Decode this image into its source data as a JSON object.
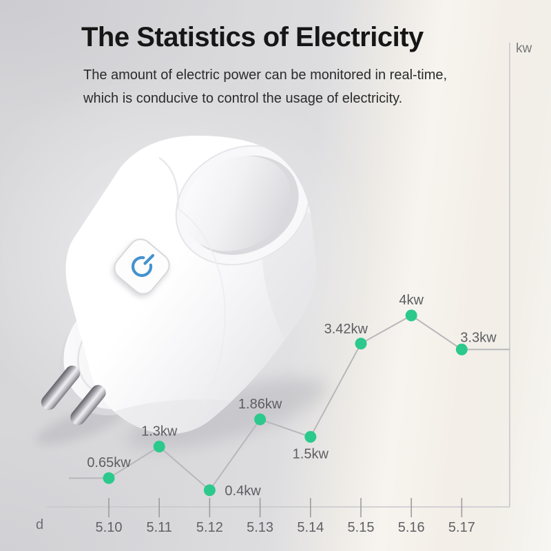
{
  "header": {
    "title": "The Statistics of Electricity",
    "subtitle_line1": "The amount of electric power can be monitored in real-time,",
    "subtitle_line2": "which is conducive to control the usage of electricity."
  },
  "device": {
    "name": "white smart plug with power button",
    "power_icon_color": "#4492cd",
    "pin_count": 2
  },
  "chart_data": {
    "type": "line",
    "x": [
      "5.10",
      "5.11",
      "5.12",
      "5.13",
      "5.14",
      "5.15",
      "5.16",
      "5.17"
    ],
    "values": [
      0.65,
      1.3,
      0.4,
      1.86,
      1.5,
      3.42,
      4,
      3.3
    ],
    "point_labels": [
      "0.65kw",
      "1.3kw",
      "0.4kw",
      "1.86kw",
      "1.5kw",
      "3.42kw",
      "4kw",
      "3.3kw"
    ],
    "label_positions": [
      "above",
      "above",
      "right",
      "above",
      "below",
      "above-left",
      "above",
      "above-right"
    ],
    "xlabel": "d",
    "ylabel": "kw",
    "ylim": [
      0,
      4.4
    ],
    "grid": false,
    "legend": "none",
    "line_color": "#b7b7bb",
    "point_color": "#2cc98c",
    "axis_color": "#c7c7cb",
    "tick_color": "#9b9ba0",
    "label_color": "#5d5d62",
    "xtick_label_color": "#606066"
  }
}
